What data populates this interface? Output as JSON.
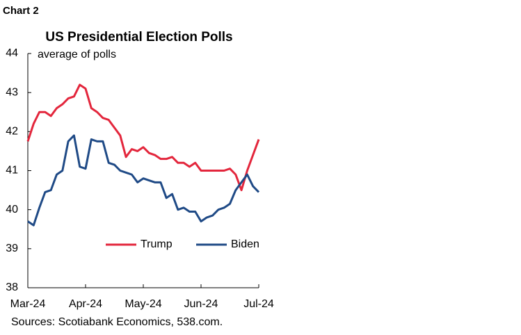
{
  "header": "Chart 2",
  "chart_data": {
    "type": "line",
    "title": "US Presidential Election Polls",
    "y_label": "average of polls",
    "categories": [
      "Mar-24",
      null,
      null,
      null,
      null,
      null,
      null,
      null,
      null,
      null,
      "Apr-24",
      null,
      null,
      null,
      null,
      null,
      null,
      null,
      null,
      null,
      "May-24",
      null,
      null,
      null,
      null,
      null,
      null,
      null,
      null,
      null,
      "Jun-24",
      null,
      null,
      null,
      null,
      null,
      null,
      null,
      null,
      null,
      "Jul-24"
    ],
    "series": [
      {
        "name": "Trump",
        "color": "#e3263c",
        "values": [
          41.75,
          42.2,
          42.5,
          42.5,
          42.4,
          42.6,
          42.7,
          42.85,
          42.9,
          43.2,
          43.1,
          42.6,
          42.5,
          42.35,
          42.3,
          42.1,
          41.9,
          41.35,
          41.55,
          41.5,
          41.6,
          41.45,
          41.4,
          41.3,
          41.3,
          41.35,
          41.2,
          41.2,
          41.1,
          41.2,
          41.0,
          41.0,
          41.0,
          41.0,
          41.0,
          41.05,
          40.9,
          40.5,
          41.0,
          41.4,
          41.8
        ]
      },
      {
        "name": "Biden",
        "color": "#1f4a86",
        "values": [
          39.7,
          39.6,
          40.05,
          40.45,
          40.5,
          40.9,
          41.0,
          41.75,
          41.9,
          41.1,
          41.05,
          41.8,
          41.75,
          41.75,
          41.2,
          41.15,
          41.0,
          40.95,
          40.9,
          40.7,
          40.8,
          40.75,
          40.7,
          40.7,
          40.3,
          40.4,
          40.0,
          40.05,
          39.95,
          39.95,
          39.7,
          39.8,
          39.85,
          40.0,
          40.05,
          40.15,
          40.5,
          40.7,
          40.9,
          40.6,
          40.45
        ]
      }
    ],
    "ylim": [
      38,
      44
    ],
    "yticks": [
      38,
      39,
      40,
      41,
      42,
      43,
      44
    ],
    "legend": "lower-right",
    "source": "Sources: Scotiabank Economics, 538.com."
  }
}
